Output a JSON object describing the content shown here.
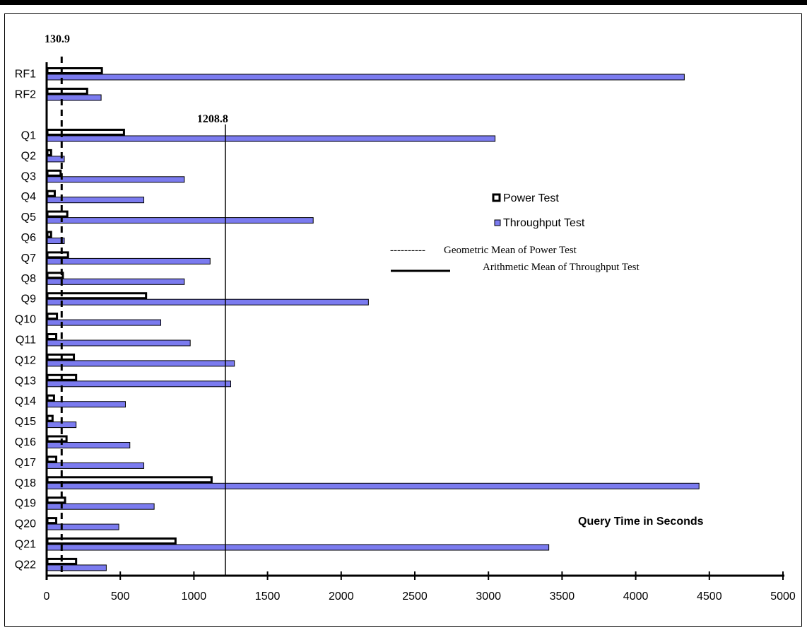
{
  "chart_data": {
    "type": "bar",
    "orientation": "horizontal",
    "categories": [
      "RF1",
      "RF2",
      "Q1",
      "Q2",
      "Q3",
      "Q4",
      "Q5",
      "Q6",
      "Q7",
      "Q8",
      "Q9",
      "Q10",
      "Q11",
      "Q12",
      "Q13",
      "Q14",
      "Q15",
      "Q16",
      "Q17",
      "Q18",
      "Q19",
      "Q20",
      "Q21",
      "Q22"
    ],
    "series": [
      {
        "name": "Power Test",
        "values": [
          375,
          275,
          525,
          30,
          95,
          55,
          140,
          30,
          145,
          110,
          675,
          70,
          65,
          185,
          200,
          50,
          40,
          135,
          65,
          1120,
          125,
          65,
          875,
          200
        ],
        "fill": "#ffffff",
        "stroke": "#000000"
      },
      {
        "name": "Throughput Test",
        "values": [
          4330,
          370,
          3045,
          120,
          935,
          660,
          1810,
          120,
          1110,
          935,
          2185,
          775,
          975,
          1275,
          1250,
          535,
          200,
          565,
          660,
          4430,
          730,
          490,
          3410,
          405
        ],
        "fill": "#7b7bef",
        "stroke": "#000000"
      }
    ],
    "reference_lines": [
      {
        "name": "Geometric Mean of Power Test",
        "value": 130.9,
        "label": "130.9",
        "style": "dashed"
      },
      {
        "name": "Arithmetic Mean of Throughput Test",
        "value": 1208.8,
        "label": "1208.8",
        "style": "solid"
      }
    ],
    "xlabel": "Query Time in Seconds",
    "xlim": [
      0,
      5000
    ],
    "xticks": [
      "0",
      "500",
      "1000",
      "1500",
      "2000",
      "2500",
      "3000",
      "3500",
      "4000",
      "4500",
      "5000"
    ],
    "grid": false,
    "legend_position": "right"
  },
  "legend": {
    "power": "Power Test",
    "throughput": "Throughput Test",
    "geo_dash_text": "----------",
    "geo_mean": "Geometric Mean of Power Test",
    "arith_mean": "Arithmetic Mean of Throughput Test"
  }
}
